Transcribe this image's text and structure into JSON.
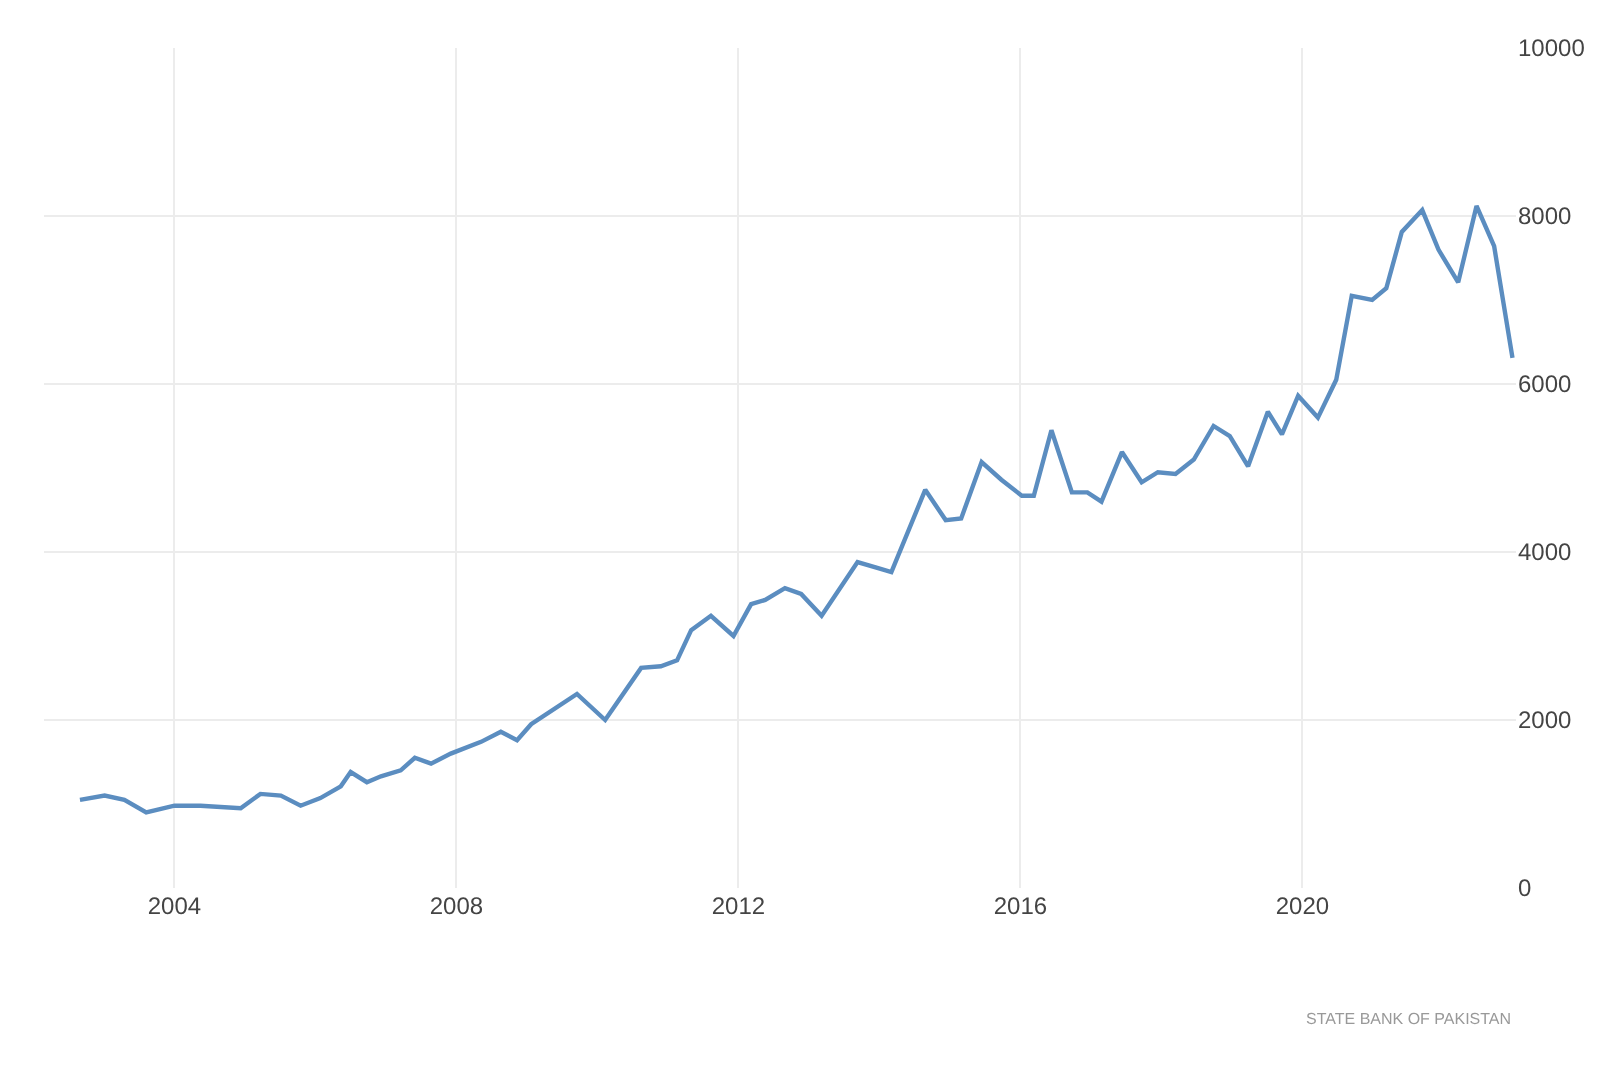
{
  "chart_data": {
    "type": "line",
    "x": [
      2002.66,
      2003.01,
      2003.29,
      2003.6,
      2004.0,
      2004.37,
      2004.94,
      2005.22,
      2005.51,
      2005.79,
      2006.07,
      2006.36,
      2006.5,
      2006.73,
      2006.93,
      2007.21,
      2007.41,
      2007.64,
      2007.92,
      2008.35,
      2008.63,
      2008.86,
      2009.06,
      2009.71,
      2010.11,
      2010.62,
      2010.9,
      2011.13,
      2011.33,
      2011.61,
      2011.93,
      2012.18,
      2012.38,
      2012.66,
      2012.89,
      2013.18,
      2013.69,
      2013.97,
      2014.17,
      2014.65,
      2014.94,
      2015.16,
      2015.45,
      2015.73,
      2016.02,
      2016.19,
      2016.44,
      2016.73,
      2016.95,
      2017.15,
      2017.44,
      2017.72,
      2017.95,
      2018.2,
      2018.46,
      2018.74,
      2018.97,
      2019.23,
      2019.51,
      2019.71,
      2019.94,
      2020.22,
      2020.48,
      2020.7,
      2020.99,
      2021.19,
      2021.41,
      2021.7,
      2021.93,
      2022.21,
      2022.47,
      2022.72,
      2022.98
    ],
    "series": [
      {
        "color": "#5b8dc0",
        "values": [
          1050,
          1100,
          1050,
          900,
          980,
          980,
          950,
          1120,
          1100,
          980,
          1070,
          1210,
          1380,
          1260,
          1330,
          1400,
          1550,
          1480,
          1600,
          1740,
          1860,
          1760,
          1950,
          2310,
          2000,
          2620,
          2640,
          2710,
          3070,
          3240,
          3000,
          3380,
          3430,
          3570,
          3500,
          3240,
          3880,
          3810,
          3760,
          4740,
          4380,
          4400,
          5070,
          4860,
          4670,
          4670,
          5450,
          4710,
          4710,
          4600,
          5190,
          4830,
          4950,
          4930,
          5100,
          5500,
          5380,
          5020,
          5670,
          5400,
          5860,
          5600,
          6050,
          7050,
          7000,
          7140,
          7810,
          8070,
          7600,
          7210,
          8120,
          7640,
          6310
        ]
      }
    ],
    "xlim": [
      2002.15,
      2023.03
    ],
    "xticks": [
      2004,
      2008,
      2012,
      2016,
      2020
    ],
    "ylim": [
      0,
      10000
    ],
    "yticks": [
      0,
      2000,
      4000,
      6000,
      8000,
      10000
    ],
    "grid": true,
    "marker": "none",
    "line_style": "solid",
    "annotations": [
      "STATE BANK OF PAKISTAN"
    ]
  }
}
